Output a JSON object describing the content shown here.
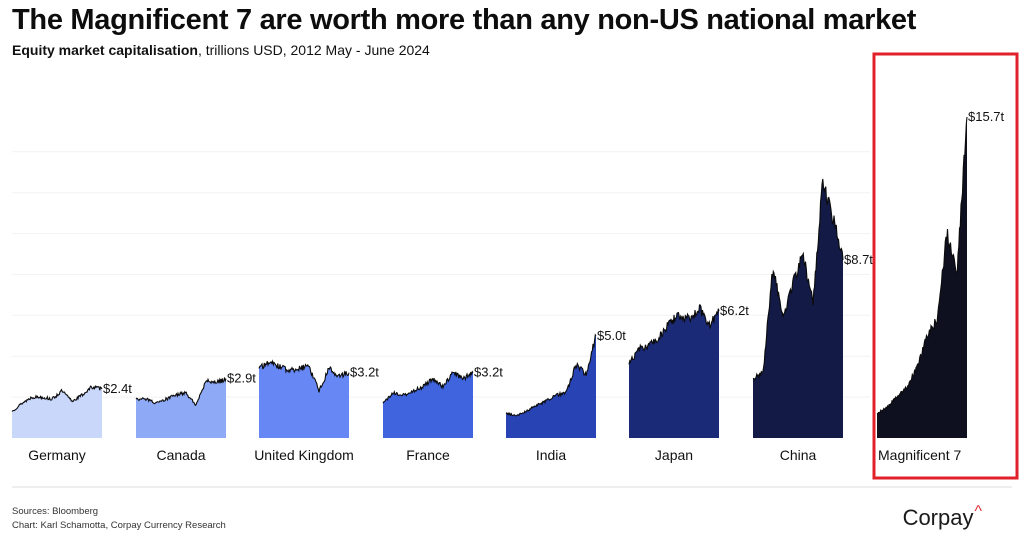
{
  "header": {
    "title": "The Magnificent 7 are worth more than any non-US national market",
    "subtitle_bold": "Equity market capitalisation",
    "subtitle_rest": ", trillions USD, 2012 May - June 2024"
  },
  "chart_data": {
    "type": "area",
    "title": "The Magnificent 7 are worth more than any non-US national market",
    "subtitle": "Equity market capitalisation, trillions USD, 2012 May - June 2024",
    "x_range": [
      "2012 May",
      "June 2024"
    ],
    "ylim": [
      0,
      18
    ],
    "grid": true,
    "legend": "none",
    "highlight": "Magnificent 7",
    "highlight_color": "#e0202a",
    "series": [
      {
        "name": "Germany",
        "color": "#c9d7fb",
        "end_label": "$2.4t",
        "values": [
          1.3,
          1.7,
          2.0,
          2.0,
          1.9,
          2.3,
          1.8,
          2.1,
          2.5,
          2.4
        ]
      },
      {
        "name": "Canada",
        "color": "#8ea9f5",
        "end_label": "$2.9t",
        "values": [
          1.9,
          1.9,
          1.7,
          1.9,
          2.1,
          2.2,
          1.6,
          2.8,
          2.7,
          2.9
        ]
      },
      {
        "name": "United Kingdom",
        "color": "#6788f4",
        "end_label": "$3.2t",
        "values": [
          3.4,
          3.7,
          3.5,
          3.3,
          3.4,
          3.5,
          2.3,
          3.4,
          3.0,
          3.2
        ]
      },
      {
        "name": "France",
        "color": "#3f64dd",
        "end_label": "$3.2t",
        "values": [
          1.7,
          2.2,
          2.1,
          2.3,
          2.5,
          2.9,
          2.5,
          3.2,
          2.9,
          3.2
        ]
      },
      {
        "name": "India",
        "color": "#2843b3",
        "end_label": "$5.0t",
        "values": [
          1.2,
          1.1,
          1.3,
          1.6,
          1.8,
          2.1,
          2.2,
          3.6,
          3.1,
          5.0
        ]
      },
      {
        "name": "Japan",
        "color": "#1b2a77",
        "end_label": "$6.2t",
        "values": [
          3.6,
          4.4,
          4.5,
          4.9,
          5.6,
          6.0,
          5.8,
          6.4,
          5.5,
          6.2
        ]
      },
      {
        "name": "China",
        "color": "#121a45",
        "end_label": "$8.7t",
        "values": [
          2.9,
          3.2,
          8.4,
          5.8,
          7.6,
          9.0,
          6.6,
          12.6,
          10.8,
          8.7
        ]
      },
      {
        "name": "Magnificent 7",
        "color": "#0e1020",
        "end_label": "$15.7t",
        "values": [
          1.2,
          1.5,
          2.0,
          2.5,
          3.5,
          5.0,
          5.8,
          10.0,
          8.0,
          15.7
        ]
      }
    ]
  },
  "footer": {
    "sources": "Sources: Bloomberg",
    "chart_credit": "Chart: Karl Schamotta, Corpay Currency Research"
  },
  "logo": {
    "text": "Corpay",
    "caret": "^"
  }
}
